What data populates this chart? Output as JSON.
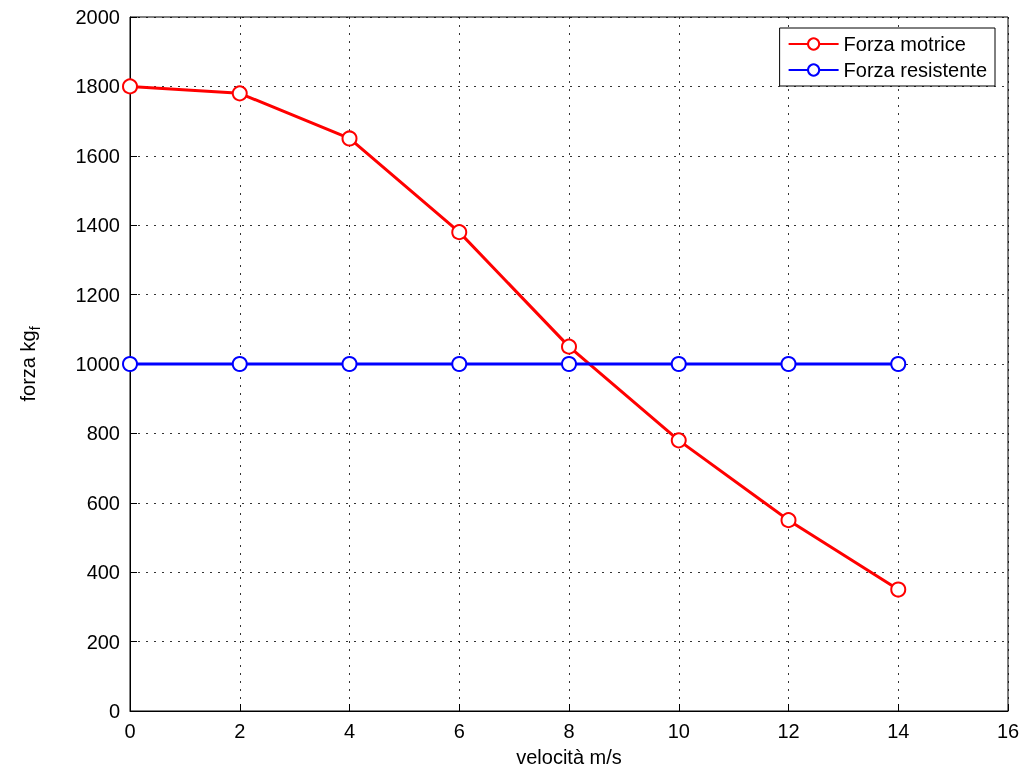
{
  "chart_data": {
    "type": "line",
    "xlabel": "velocità m/s",
    "ylabel": "forza kg$_{f}$",
    "x": [
      0,
      2,
      4,
      6,
      8,
      10,
      12,
      14
    ],
    "series": [
      {
        "name": "Forza motrice",
        "color": "#ff0000",
        "values": [
          1800,
          1780,
          1650,
          1380,
          1050,
          780,
          550,
          350
        ]
      },
      {
        "name": "Forza resistente",
        "color": "#0000ff",
        "values": [
          1000,
          1000,
          1000,
          1000,
          1000,
          1000,
          1000,
          1000
        ]
      }
    ],
    "xlim": [
      0,
      16
    ],
    "xticks": [
      0,
      2,
      4,
      6,
      8,
      10,
      12,
      14,
      16
    ],
    "ylim": [
      0,
      2000
    ],
    "yticks": [
      0,
      200,
      400,
      600,
      800,
      1000,
      1200,
      1400,
      1600,
      1800,
      2000
    ],
    "grid": true,
    "legend": "top right",
    "marker": "circle",
    "line_style": "solid"
  }
}
